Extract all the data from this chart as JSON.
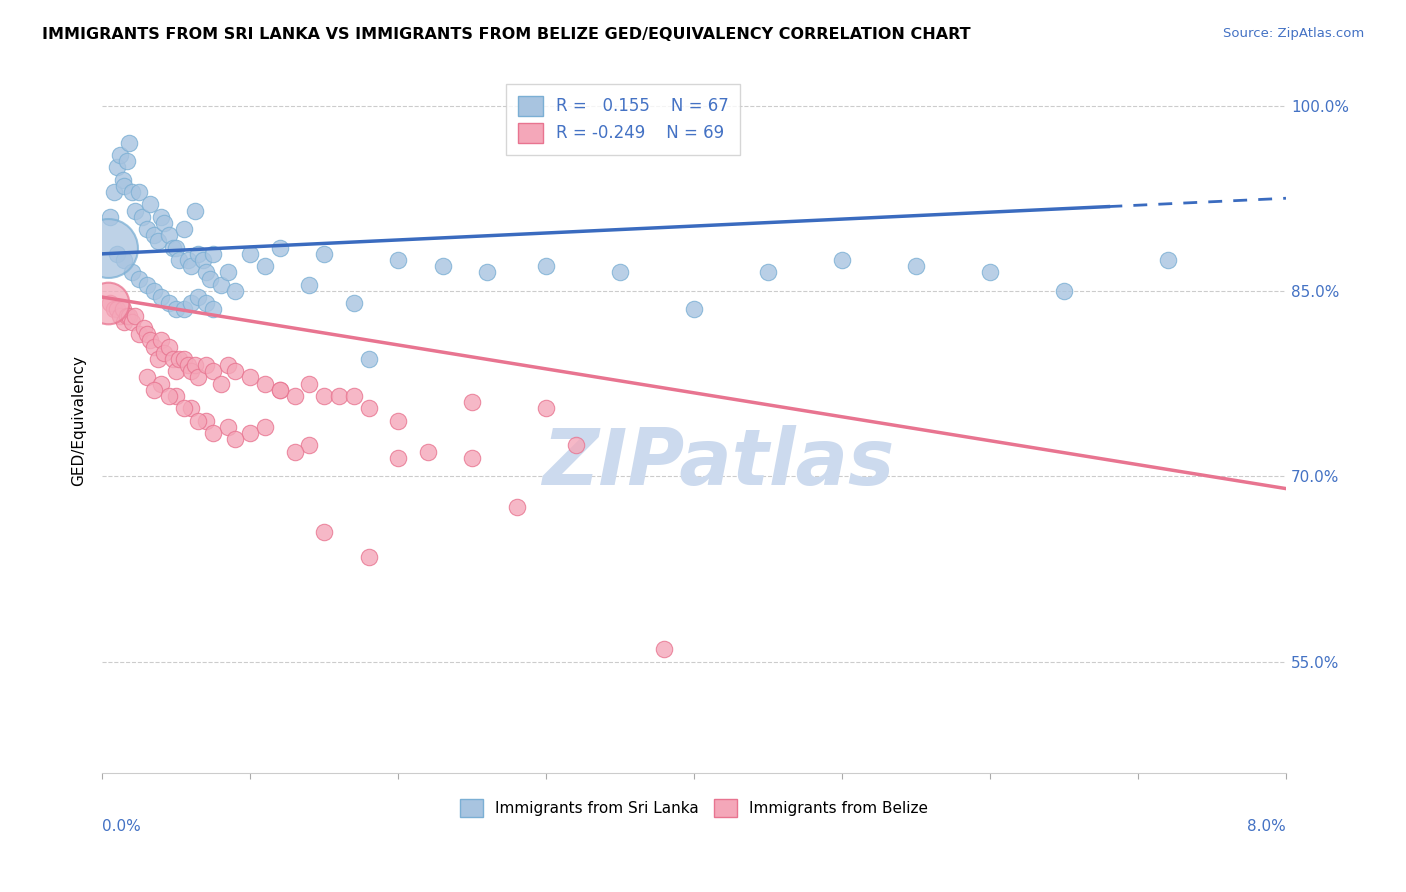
{
  "title": "IMMIGRANTS FROM SRI LANKA VS IMMIGRANTS FROM BELIZE GED/EQUIVALENCY CORRELATION CHART",
  "source": "Source: ZipAtlas.com",
  "ylabel": "GED/Equivalency",
  "xmin": 0.0,
  "xmax": 8.0,
  "ymin": 46.0,
  "ymax": 103.0,
  "sri_lanka_R": 0.155,
  "sri_lanka_N": 67,
  "belize_R": -0.249,
  "belize_N": 69,
  "sri_lanka_color": "#a8c4e0",
  "sri_lanka_edge_color": "#7bafd4",
  "belize_color": "#f4a7b9",
  "belize_edge_color": "#e87490",
  "sri_lanka_line_color": "#3a6bbf",
  "belize_line_color": "#e87490",
  "watermark_color": "#ccdaee",
  "ytick_values": [
    55.0,
    70.0,
    85.0,
    100.0
  ],
  "ytick_labels": [
    "55.0%",
    "70.0%",
    "85.0%",
    "100.0%"
  ],
  "sl_trend_x0": 0.0,
  "sl_trend_y0": 88.0,
  "sl_trend_x1": 8.0,
  "sl_trend_y1": 92.5,
  "sl_dash_start": 6.8,
  "bz_trend_x0": 0.0,
  "bz_trend_y0": 84.5,
  "bz_trend_x1": 8.0,
  "bz_trend_y1": 69.0,
  "sri_lanka_x": [
    0.05,
    0.08,
    0.1,
    0.12,
    0.14,
    0.15,
    0.17,
    0.18,
    0.2,
    0.22,
    0.25,
    0.27,
    0.3,
    0.32,
    0.35,
    0.38,
    0.4,
    0.42,
    0.45,
    0.48,
    0.5,
    0.52,
    0.55,
    0.58,
    0.6,
    0.63,
    0.65,
    0.68,
    0.7,
    0.73,
    0.75,
    0.8,
    0.85,
    0.9,
    1.0,
    1.1,
    1.2,
    1.4,
    1.5,
    1.7,
    1.8,
    2.0,
    2.3,
    2.6,
    3.0,
    3.5,
    4.0,
    4.5,
    5.0,
    5.5,
    6.0,
    6.5,
    7.2,
    0.1,
    0.15,
    0.2,
    0.25,
    0.3,
    0.35,
    0.4,
    0.45,
    0.5,
    0.55,
    0.6,
    0.65,
    0.7,
    0.75
  ],
  "sri_lanka_y": [
    91.0,
    93.0,
    95.0,
    96.0,
    94.0,
    93.5,
    95.5,
    97.0,
    93.0,
    91.5,
    93.0,
    91.0,
    90.0,
    92.0,
    89.5,
    89.0,
    91.0,
    90.5,
    89.5,
    88.5,
    88.5,
    87.5,
    90.0,
    87.5,
    87.0,
    91.5,
    88.0,
    87.5,
    86.5,
    86.0,
    88.0,
    85.5,
    86.5,
    85.0,
    88.0,
    87.0,
    88.5,
    85.5,
    88.0,
    84.0,
    79.5,
    87.5,
    87.0,
    86.5,
    87.0,
    86.5,
    83.5,
    86.5,
    87.5,
    87.0,
    86.5,
    85.0,
    87.5,
    88.0,
    87.5,
    86.5,
    86.0,
    85.5,
    85.0,
    84.5,
    84.0,
    83.5,
    83.5,
    84.0,
    84.5,
    84.0,
    83.5
  ],
  "belize_x": [
    0.05,
    0.08,
    0.1,
    0.12,
    0.14,
    0.15,
    0.17,
    0.18,
    0.2,
    0.22,
    0.25,
    0.28,
    0.3,
    0.32,
    0.35,
    0.38,
    0.4,
    0.42,
    0.45,
    0.48,
    0.5,
    0.52,
    0.55,
    0.58,
    0.6,
    0.63,
    0.65,
    0.7,
    0.75,
    0.8,
    0.85,
    0.9,
    1.0,
    1.1,
    1.2,
    1.3,
    1.4,
    1.5,
    1.6,
    1.8,
    2.0,
    2.5,
    3.0,
    0.3,
    0.4,
    0.5,
    0.6,
    0.7,
    0.85,
    1.0,
    1.2,
    1.4,
    1.7,
    2.0,
    2.5,
    3.2,
    1.5,
    1.8,
    2.2,
    2.8,
    0.35,
    0.45,
    0.55,
    0.65,
    0.75,
    0.9,
    1.1,
    1.3,
    3.8
  ],
  "belize_y": [
    84.0,
    83.5,
    83.5,
    83.0,
    83.5,
    82.5,
    83.0,
    83.0,
    82.5,
    83.0,
    81.5,
    82.0,
    81.5,
    81.0,
    80.5,
    79.5,
    81.0,
    80.0,
    80.5,
    79.5,
    78.5,
    79.5,
    79.5,
    79.0,
    78.5,
    79.0,
    78.0,
    79.0,
    78.5,
    77.5,
    79.0,
    78.5,
    78.0,
    77.5,
    77.0,
    76.5,
    77.5,
    76.5,
    76.5,
    75.5,
    74.5,
    76.0,
    75.5,
    78.0,
    77.5,
    76.5,
    75.5,
    74.5,
    74.0,
    73.5,
    77.0,
    72.5,
    76.5,
    71.5,
    71.5,
    72.5,
    65.5,
    63.5,
    72.0,
    67.5,
    77.0,
    76.5,
    75.5,
    74.5,
    73.5,
    73.0,
    74.0,
    72.0,
    56.0
  ]
}
